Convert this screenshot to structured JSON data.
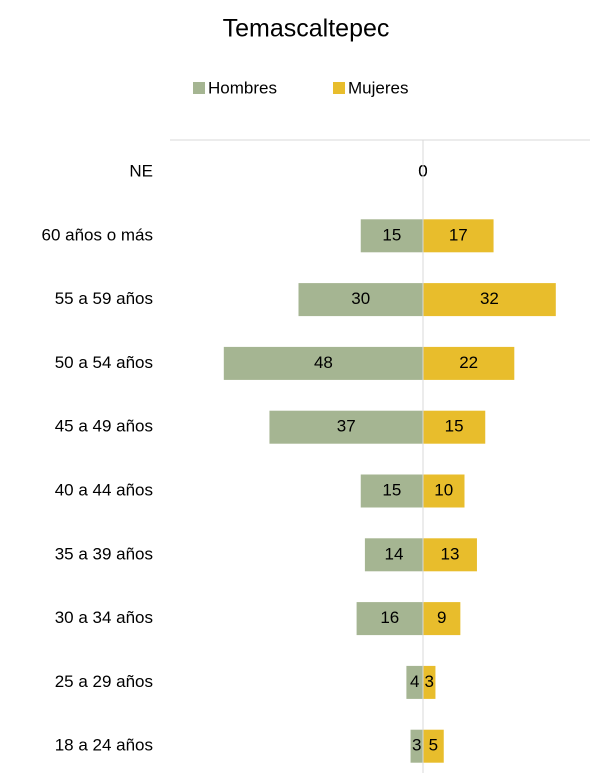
{
  "chart_data": {
    "type": "bar",
    "orientation": "horizontal",
    "layout": "pyramid",
    "title": "Temascaltepec",
    "categories": [
      "NE",
      "60 años o más",
      "55 a 59 años",
      "50 a 54 años",
      "45 a 49 años",
      "40 a 44 años",
      "35 a 39 años",
      "30 a 34 años",
      "25 a 29 años",
      "18 a 24 años"
    ],
    "series": [
      {
        "name": "Hombres",
        "color": "#a5b592",
        "values": [
          0,
          15,
          30,
          48,
          37,
          15,
          14,
          16,
          4,
          3
        ]
      },
      {
        "name": "Mujeres",
        "color": "#e8bd2c",
        "values": [
          0,
          17,
          32,
          22,
          15,
          10,
          13,
          9,
          3,
          5
        ]
      }
    ],
    "legend": "top"
  }
}
